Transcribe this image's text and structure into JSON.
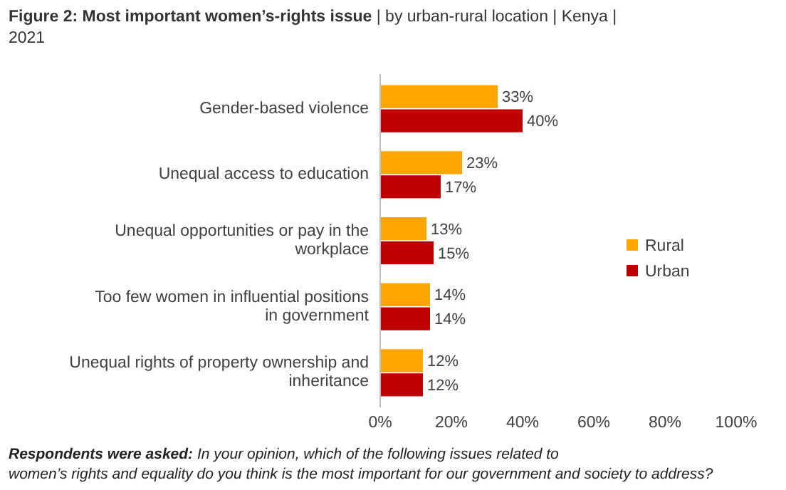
{
  "chart_data": {
    "type": "bar",
    "orientation": "horizontal",
    "title": "Figure 2: Most important women’s-rights issue",
    "subtitle": "| by urban-rural location | Kenya | 2021",
    "categories": [
      "Gender-based violence",
      "Unequal access to education",
      "Unequal opportunities or pay in the workplace",
      "Too few women in influential positions in government",
      "Unequal rights of property ownership and inheritance"
    ],
    "series": [
      {
        "name": "Rural",
        "color": "#ffa500",
        "values": [
          33,
          23,
          13,
          14,
          12
        ],
        "value_labels": [
          "33%",
          "23%",
          "13%",
          "14%",
          "12%"
        ]
      },
      {
        "name": "Urban",
        "color": "#c00000",
        "values": [
          40,
          17,
          15,
          14,
          12
        ],
        "value_labels": [
          "40%",
          "17%",
          "15%",
          "14%",
          "12%"
        ]
      }
    ],
    "xlim": [
      0,
      100
    ],
    "xticks": [
      {
        "value": 0,
        "label": "0%"
      },
      {
        "value": 20,
        "label": "20%"
      },
      {
        "value": 40,
        "label": "40%"
      },
      {
        "value": 60,
        "label": "60%"
      },
      {
        "value": 80,
        "label": "80%"
      },
      {
        "value": 100,
        "label": "100%"
      }
    ],
    "legend": "right",
    "grid": false,
    "annotations": [
      "Respondents were asked: In your opinion, which of the following issues related to women’s rights and equality do you think is the most important for our government and society to address?"
    ]
  }
}
